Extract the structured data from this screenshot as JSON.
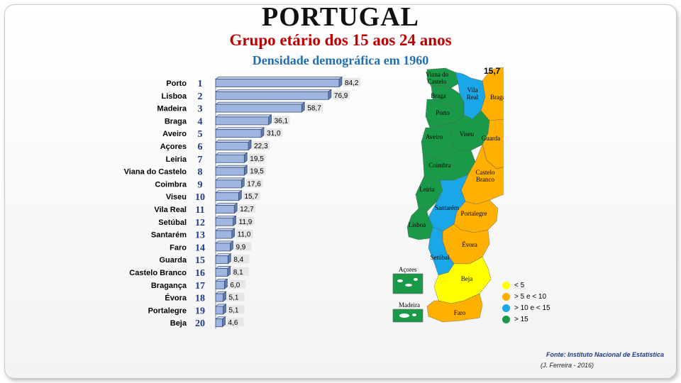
{
  "header": {
    "title": "PORTUGAL",
    "subtitle": "Grupo etário dos 15 aos 24 anos",
    "subtitle2": "Densidade demográfica em 1960"
  },
  "chart_data": {
    "type": "bar",
    "orientation": "horizontal",
    "title": "Densidade demográfica em 1960",
    "categories": [
      "Porto",
      "Lisboa",
      "Madeira",
      "Braga",
      "Aveiro",
      "Açores",
      "Leiria",
      "Viana do Castelo",
      "Coimbra",
      "Viseu",
      "Vila Real",
      "Setúbal",
      "Santarém",
      "Faro",
      "Guarda",
      "Castelo Branco",
      "Bragança",
      "Évora",
      "Portalegre",
      "Beja"
    ],
    "ranks": [
      "1",
      "2",
      "3",
      "4",
      "5",
      "6",
      "7",
      "8",
      "9",
      "10",
      "11",
      "12",
      "13",
      "14",
      "15",
      "16",
      "17",
      "18",
      "19",
      "20"
    ],
    "values": [
      84.2,
      76.9,
      58.7,
      36.1,
      31.0,
      22.3,
      19.5,
      19.5,
      17.6,
      15.7,
      12.7,
      11.9,
      11.0,
      9.9,
      8.4,
      8.1,
      6.0,
      5.1,
      5.1,
      4.6
    ],
    "value_labels": [
      "84,2",
      "76,9",
      "58,7",
      "36,1",
      "31,0",
      "22,3",
      "19,5",
      "19,5",
      "17,6",
      "15,7",
      "12,7",
      "11,9",
      "11,0",
      "9,9",
      "8,4",
      "8,1",
      "6,0",
      "5,1",
      "5,1",
      "4,6"
    ],
    "xlim": [
      0,
      90
    ],
    "grid": false,
    "bar_color": "#9fb6e0"
  },
  "map": {
    "national_value": "15,7",
    "districts": [
      {
        "name": "Viana do Castelo",
        "label_lines": [
          "Viana do",
          "Castelo"
        ],
        "class": "green"
      },
      {
        "name": "Braga",
        "label_lines": [
          "Braga"
        ],
        "class": "green"
      },
      {
        "name": "Vila Real",
        "label_lines": [
          "Vila",
          "Real"
        ],
        "class": "blue"
      },
      {
        "name": "Bragança",
        "label_lines": [
          "Bragança"
        ],
        "class": "orange"
      },
      {
        "name": "Porto",
        "label_lines": [
          "Porto"
        ],
        "class": "green"
      },
      {
        "name": "Aveiro",
        "label_lines": [
          "Aveiro"
        ],
        "class": "green"
      },
      {
        "name": "Viseu",
        "label_lines": [
          "Viseu"
        ],
        "class": "green"
      },
      {
        "name": "Guarda",
        "label_lines": [
          "Guarda"
        ],
        "class": "orange"
      },
      {
        "name": "Coimbra",
        "label_lines": [
          "Coimbra"
        ],
        "class": "green"
      },
      {
        "name": "Castelo Branco",
        "label_lines": [
          "Castelo",
          "Branco"
        ],
        "class": "orange"
      },
      {
        "name": "Leiria",
        "label_lines": [
          "Leiria"
        ],
        "class": "green"
      },
      {
        "name": "Santarém",
        "label_lines": [
          "Santarém"
        ],
        "class": "blue"
      },
      {
        "name": "Lisboa",
        "label_lines": [
          "Lisboa"
        ],
        "class": "green"
      },
      {
        "name": "Portalegre",
        "label_lines": [
          "Portalegre"
        ],
        "class": "orange"
      },
      {
        "name": "Évora",
        "label_lines": [
          "Évora"
        ],
        "class": "orange"
      },
      {
        "name": "Setúbal",
        "label_lines": [
          "Setúbal"
        ],
        "class": "blue"
      },
      {
        "name": "Beja",
        "label_lines": [
          "Beja"
        ],
        "class": "yellow"
      },
      {
        "name": "Faro",
        "label_lines": [
          "Faro"
        ],
        "class": "orange"
      }
    ],
    "islands": [
      {
        "name": "Açores",
        "class": "green"
      },
      {
        "name": "Madeira",
        "class": "green"
      }
    ]
  },
  "legend": {
    "items": [
      {
        "label": "< 5",
        "color": "#ffff00"
      },
      {
        "label": "> 5 e < 10",
        "color": "#ffb000"
      },
      {
        "label": "> 10  e < 15",
        "color": "#19a7e8"
      },
      {
        "label": "> 15",
        "color": "#1a9a48"
      }
    ]
  },
  "colors": {
    "green": "#1a9a48",
    "blue": "#19a7e8",
    "orange": "#ffb000",
    "yellow": "#ffff00"
  },
  "footer": {
    "source": "Fonte: Instituto Nacional de Estatística",
    "author": "(J. Ferreira - 2016)"
  }
}
